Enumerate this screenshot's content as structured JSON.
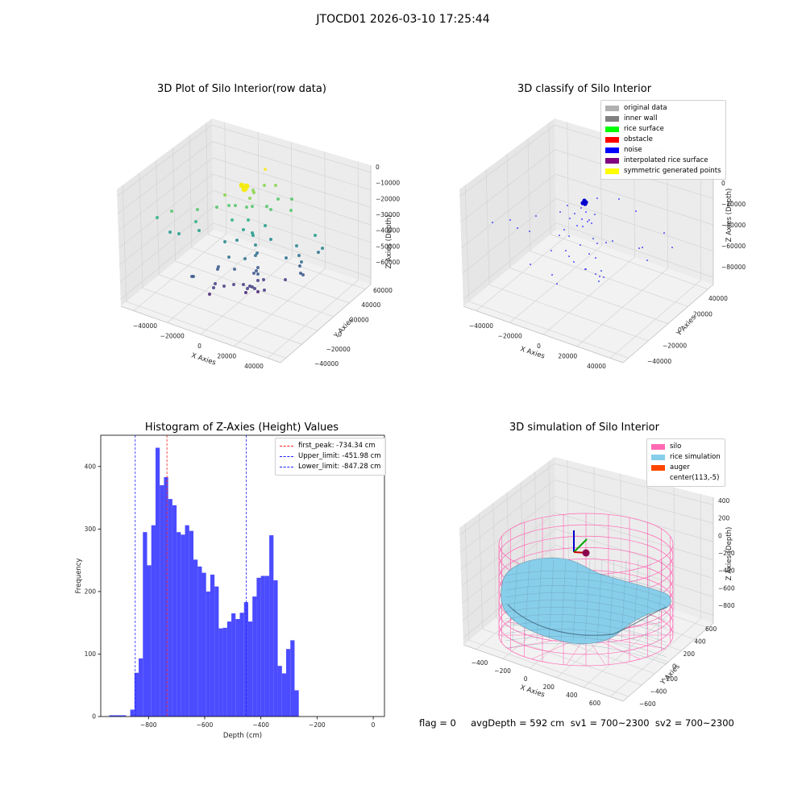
{
  "suptitle": "JTOCD01 2026-03-10 17:25:44",
  "footer": "flag = 0     avgDepth = 592 cm  sv1 = 700~2300  sv2 = 700~2300",
  "colors": {
    "hist": "#4b4bff",
    "red": "#ff2020",
    "blue": "#2020ff",
    "silo": "#ff69b4",
    "rice": "#87ceeb"
  },
  "panels": {
    "raw": {
      "title": "3D Plot of Silo Interior(row data)",
      "xlabel": "X Axies",
      "ylabel": "Y Axies",
      "zlabel": "Z Axies (Depth)",
      "xticks": [
        "−40000",
        "−20000",
        "0",
        "20000",
        "40000"
      ],
      "yticks": [
        "−40000",
        "−20000",
        "0",
        "20000",
        "40000",
        "60000"
      ],
      "zticks": [
        "0",
        "−10000",
        "−20000",
        "−30000",
        "−40000",
        "−50000",
        "−60000"
      ]
    },
    "classify": {
      "title": "3D classify of Silo Interior",
      "xlabel": "X Axies",
      "ylabel": "Y Axies",
      "zlabel": "Z Axies (Depth)",
      "xticks": [
        "−40000",
        "−20000",
        "0",
        "20000",
        "40000"
      ],
      "yticks": [
        "−40000",
        "−20000",
        "0",
        "20000",
        "40000"
      ],
      "zticks": [
        "0",
        "−20000",
        "−40000",
        "−60000",
        "−80000"
      ],
      "legend": [
        {
          "label": "original data",
          "color": "#b0b0b0"
        },
        {
          "label": "inner wall",
          "color": "#808080"
        },
        {
          "label": "rice surface",
          "color": "#00ff00"
        },
        {
          "label": "obstacle",
          "color": "#ff0000"
        },
        {
          "label": "noise",
          "color": "#0000ff"
        },
        {
          "label": "interpolated rice surface",
          "color": "#800080"
        },
        {
          "label": "symmetric generated points",
          "color": "#ffff00"
        }
      ]
    },
    "simulation": {
      "title": "3D simulation of Silo Interior",
      "xlabel": "X Axies",
      "ylabel": "Y Axies",
      "zlabel": "Z Axies (Depth)",
      "xticks": [
        "−400",
        "−200",
        "0",
        "200",
        "400",
        "600"
      ],
      "yticks": [
        "−600",
        "−400",
        "−200",
        "0",
        "200",
        "400",
        "600"
      ],
      "zticks": [
        "400",
        "200",
        "0",
        "−200",
        "−400",
        "−600",
        "−800"
      ],
      "legend": [
        {
          "label": "silo",
          "color": "#ff69b4"
        },
        {
          "label": "rice simulation",
          "color": "#87ceeb"
        },
        {
          "label": "auger",
          "color": "#ff4500"
        },
        {
          "label": "center(113,-5)",
          "color": ""
        }
      ]
    }
  },
  "chart_data": {
    "type": "bar",
    "title": "Histogram of Z-Axies (Height) Values",
    "xlabel": "Depth (cm)",
    "ylabel": "Frequency",
    "xlim": [
      -970,
      40
    ],
    "ylim": [
      0,
      450
    ],
    "xticks": [
      -800,
      -600,
      -400,
      -200,
      0
    ],
    "yticks": [
      0,
      100,
      200,
      300,
      400
    ],
    "bin_width": 15,
    "bins": [
      {
        "x0": -940,
        "x1": -880,
        "value": 2
      },
      {
        "x0": -865,
        "x1": -850,
        "value": 11
      },
      {
        "x0": -850,
        "x1": -835,
        "value": 70
      },
      {
        "x0": -835,
        "x1": -820,
        "value": 93
      },
      {
        "x0": -820,
        "x1": -805,
        "value": 295
      },
      {
        "x0": -805,
        "x1": -790,
        "value": 242
      },
      {
        "x0": -790,
        "x1": -775,
        "value": 306
      },
      {
        "x0": -775,
        "x1": -760,
        "value": 430
      },
      {
        "x0": -760,
        "x1": -745,
        "value": 370
      },
      {
        "x0": -745,
        "x1": -730,
        "value": 383
      },
      {
        "x0": -730,
        "x1": -715,
        "value": 348
      },
      {
        "x0": -715,
        "x1": -700,
        "value": 338
      },
      {
        "x0": -700,
        "x1": -685,
        "value": 295
      },
      {
        "x0": -685,
        "x1": -670,
        "value": 291
      },
      {
        "x0": -670,
        "x1": -655,
        "value": 306
      },
      {
        "x0": -655,
        "x1": -640,
        "value": 297
      },
      {
        "x0": -640,
        "x1": -625,
        "value": 251
      },
      {
        "x0": -625,
        "x1": -610,
        "value": 240
      },
      {
        "x0": -610,
        "x1": -595,
        "value": 230
      },
      {
        "x0": -595,
        "x1": -580,
        "value": 200
      },
      {
        "x0": -580,
        "x1": -565,
        "value": 227
      },
      {
        "x0": -565,
        "x1": -550,
        "value": 208
      },
      {
        "x0": -550,
        "x1": -535,
        "value": 141
      },
      {
        "x0": -535,
        "x1": -520,
        "value": 142
      },
      {
        "x0": -520,
        "x1": -505,
        "value": 152
      },
      {
        "x0": -505,
        "x1": -490,
        "value": 165
      },
      {
        "x0": -490,
        "x1": -475,
        "value": 156
      },
      {
        "x0": -475,
        "x1": -460,
        "value": 166
      },
      {
        "x0": -460,
        "x1": -445,
        "value": 183
      },
      {
        "x0": -445,
        "x1": -430,
        "value": 152
      },
      {
        "x0": -430,
        "x1": -415,
        "value": 192
      },
      {
        "x0": -415,
        "x1": -400,
        "value": 222
      },
      {
        "x0": -400,
        "x1": -385,
        "value": 225
      },
      {
        "x0": -385,
        "x1": -370,
        "value": 225
      },
      {
        "x0": -370,
        "x1": -355,
        "value": 290
      },
      {
        "x0": -355,
        "x1": -340,
        "value": 218
      },
      {
        "x0": -340,
        "x1": -325,
        "value": 81
      },
      {
        "x0": -325,
        "x1": -310,
        "value": 69
      },
      {
        "x0": -310,
        "x1": -295,
        "value": 108
      },
      {
        "x0": -295,
        "x1": -280,
        "value": 122
      },
      {
        "x0": -280,
        "x1": -265,
        "value": 42
      }
    ],
    "lines": [
      {
        "label": "first_peak: -734.34 cm",
        "x": -734.34,
        "color": "#ff2020"
      },
      {
        "label": "Upper_limit: -451.98 cm",
        "x": -451.98,
        "color": "#2020ff"
      },
      {
        "label": "Lower_limit: -847.28 cm",
        "x": -847.28,
        "color": "#2020ff"
      }
    ],
    "legend_position": "upper-right"
  }
}
